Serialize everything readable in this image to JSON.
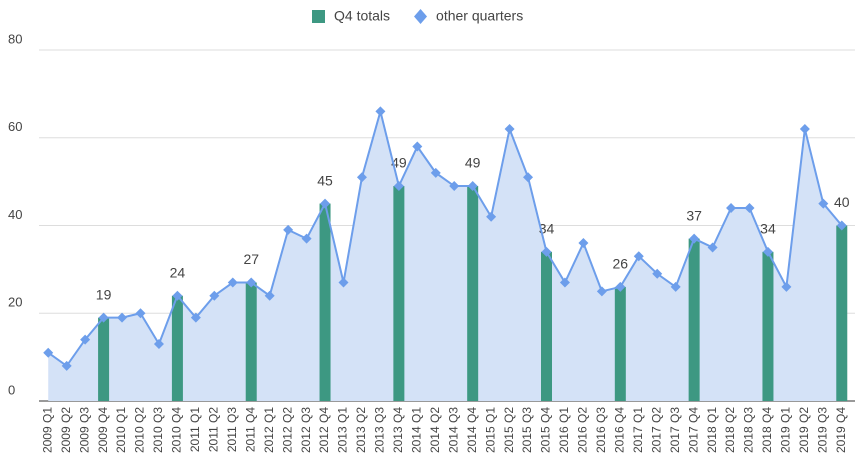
{
  "chart_data": {
    "type": "bar-line",
    "categories": [
      "2009 Q1",
      "2009 Q2",
      "2009 Q3",
      "2009 Q4",
      "2010 Q1",
      "2010 Q2",
      "2010 Q3",
      "2010 Q4",
      "2011 Q1",
      "2011 Q2",
      "2011 Q3",
      "2011 Q4",
      "2012 Q1",
      "2012 Q2",
      "2012 Q3",
      "2012 Q4",
      "2013 Q1",
      "2013 Q2",
      "2013 Q3",
      "2013 Q4",
      "2014 Q1",
      "2014 Q2",
      "2014 Q3",
      "2014 Q4",
      "2015 Q1",
      "2015 Q2",
      "2015 Q3",
      "2015 Q4",
      "2016 Q1",
      "2016 Q2",
      "2016 Q3",
      "2016 Q4",
      "2017 Q1",
      "2017 Q2",
      "2017 Q3",
      "2017 Q4",
      "2018 Q1",
      "2018 Q2",
      "2018 Q3",
      "2018 Q4",
      "2019 Q1",
      "2019 Q2",
      "2019 Q3",
      "2019 Q4"
    ],
    "series": [
      {
        "name": "Q4 totals",
        "type": "bar",
        "color": "#3d9882",
        "values": [
          null,
          null,
          null,
          19,
          null,
          null,
          null,
          24,
          null,
          null,
          null,
          27,
          null,
          null,
          null,
          45,
          null,
          null,
          null,
          49,
          null,
          null,
          null,
          49,
          null,
          null,
          null,
          34,
          null,
          null,
          null,
          26,
          null,
          null,
          null,
          37,
          null,
          null,
          null,
          34,
          null,
          null,
          null,
          40
        ]
      },
      {
        "name": "other quarters",
        "type": "area",
        "color": "#6d9eeb",
        "fill": "#d4e2f7",
        "values": [
          11,
          8,
          14,
          19,
          19,
          20,
          13,
          24,
          19,
          24,
          27,
          27,
          24,
          39,
          37,
          45,
          27,
          51,
          66,
          49,
          58,
          52,
          49,
          49,
          42,
          62,
          51,
          34,
          27,
          36,
          25,
          26,
          33,
          29,
          26,
          37,
          35,
          44,
          44,
          34,
          26,
          62,
          45,
          40
        ]
      }
    ],
    "ylim": [
      0,
      80
    ],
    "yticks": [
      0,
      20,
      40,
      60,
      80
    ],
    "grid": true,
    "legend": "top"
  }
}
